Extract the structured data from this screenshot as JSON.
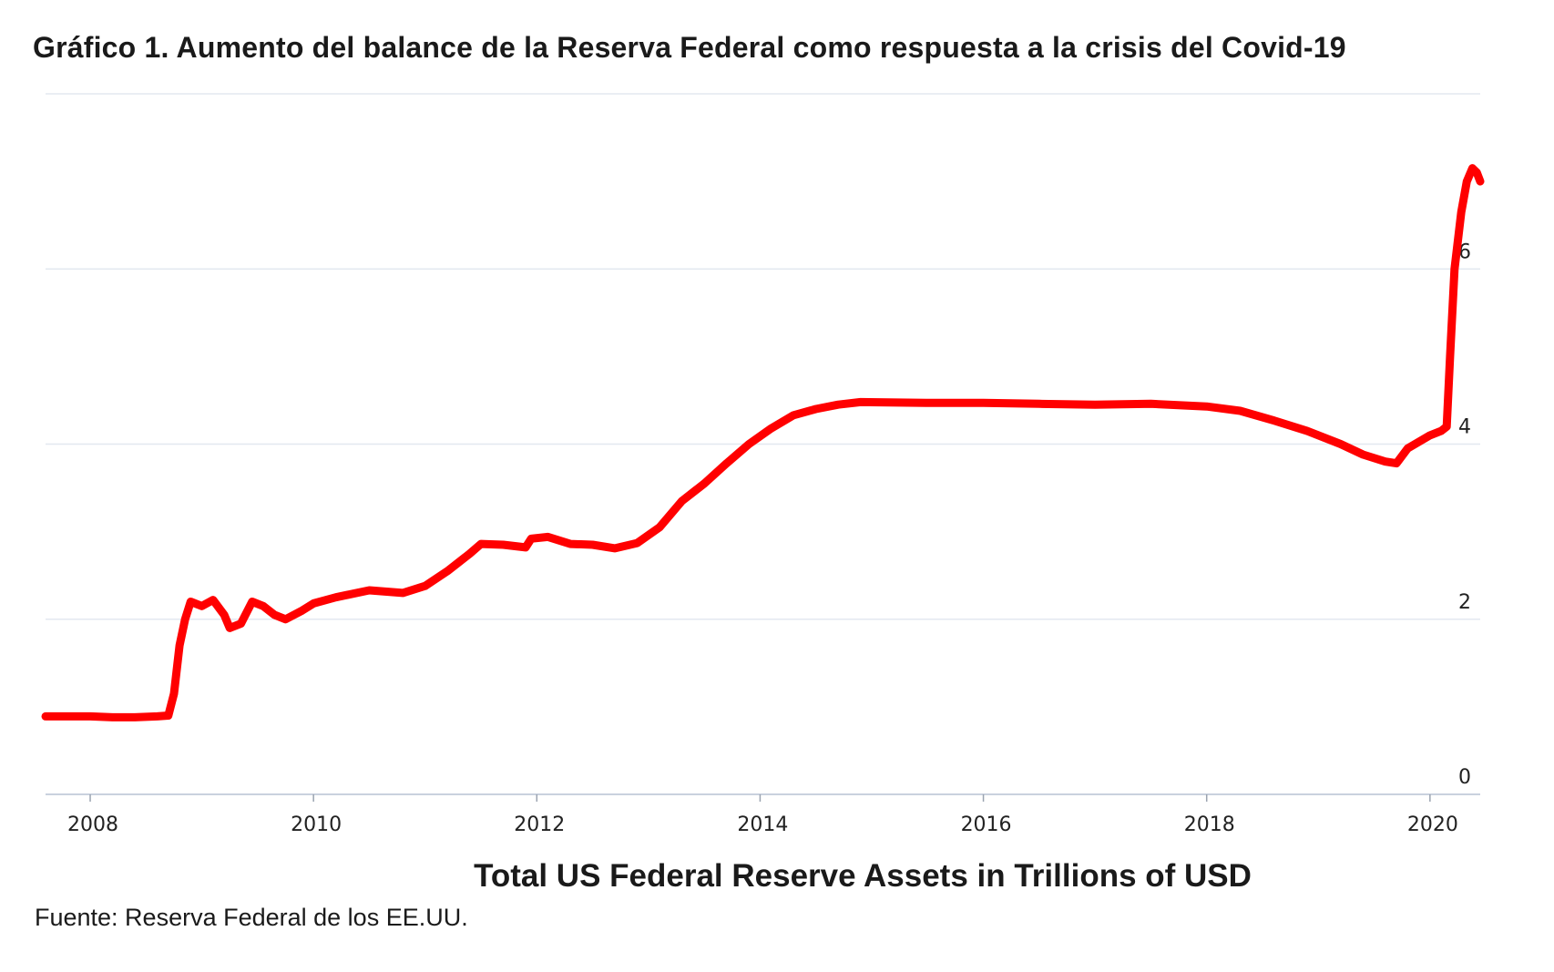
{
  "header": {
    "title": "Gráfico 1. Aumento del balance de la Reserva Federal como respuesta a la crisis del Covid-19"
  },
  "footer": {
    "source": "Fuente: Reserva Federal de los EE.UU."
  },
  "colors": {
    "line": "#ff0000",
    "grid": "#e3e8f0",
    "text": "#1a1a1a"
  },
  "chart_data": {
    "type": "line",
    "title": "",
    "xlabel": "Total US Federal Reserve Assets in Trillions of USD",
    "ylabel": "",
    "xlim": [
      2007.6,
      2020.45
    ],
    "ylim": [
      0,
      8
    ],
    "x_ticks": [
      "2008",
      "2010",
      "2012",
      "2014",
      "2016",
      "2018",
      "2020"
    ],
    "y_ticks": [
      "0",
      "2",
      "4",
      "6"
    ],
    "y_axis_side": "right",
    "grid": true,
    "series": [
      {
        "points": [
          [
            2007.6,
            0.89
          ],
          [
            2007.8,
            0.89
          ],
          [
            2008.0,
            0.89
          ],
          [
            2008.2,
            0.88
          ],
          [
            2008.4,
            0.88
          ],
          [
            2008.6,
            0.89
          ],
          [
            2008.7,
            0.9
          ],
          [
            2008.75,
            1.15
          ],
          [
            2008.8,
            1.7
          ],
          [
            2008.85,
            2.0
          ],
          [
            2008.9,
            2.2
          ],
          [
            2009.0,
            2.15
          ],
          [
            2009.1,
            2.22
          ],
          [
            2009.2,
            2.05
          ],
          [
            2009.25,
            1.9
          ],
          [
            2009.35,
            1.95
          ],
          [
            2009.45,
            2.2
          ],
          [
            2009.55,
            2.15
          ],
          [
            2009.65,
            2.05
          ],
          [
            2009.75,
            2.0
          ],
          [
            2009.9,
            2.1
          ],
          [
            2010.0,
            2.18
          ],
          [
            2010.2,
            2.25
          ],
          [
            2010.5,
            2.33
          ],
          [
            2010.8,
            2.3
          ],
          [
            2011.0,
            2.38
          ],
          [
            2011.2,
            2.55
          ],
          [
            2011.4,
            2.75
          ],
          [
            2011.5,
            2.86
          ],
          [
            2011.7,
            2.85
          ],
          [
            2011.9,
            2.82
          ],
          [
            2011.95,
            2.92
          ],
          [
            2012.1,
            2.94
          ],
          [
            2012.3,
            2.86
          ],
          [
            2012.5,
            2.85
          ],
          [
            2012.7,
            2.81
          ],
          [
            2012.9,
            2.87
          ],
          [
            2013.1,
            3.05
          ],
          [
            2013.3,
            3.35
          ],
          [
            2013.5,
            3.55
          ],
          [
            2013.7,
            3.78
          ],
          [
            2013.9,
            4.0
          ],
          [
            2014.1,
            4.18
          ],
          [
            2014.3,
            4.33
          ],
          [
            2014.5,
            4.4
          ],
          [
            2014.7,
            4.45
          ],
          [
            2014.9,
            4.48
          ],
          [
            2015.5,
            4.47
          ],
          [
            2016.0,
            4.47
          ],
          [
            2016.5,
            4.46
          ],
          [
            2017.0,
            4.45
          ],
          [
            2017.5,
            4.46
          ],
          [
            2018.0,
            4.43
          ],
          [
            2018.3,
            4.38
          ],
          [
            2018.6,
            4.27
          ],
          [
            2018.9,
            4.15
          ],
          [
            2019.2,
            4.0
          ],
          [
            2019.4,
            3.88
          ],
          [
            2019.6,
            3.8
          ],
          [
            2019.7,
            3.78
          ],
          [
            2019.8,
            3.95
          ],
          [
            2020.0,
            4.1
          ],
          [
            2020.1,
            4.15
          ],
          [
            2020.15,
            4.2
          ],
          [
            2020.18,
            5.0
          ],
          [
            2020.22,
            6.0
          ],
          [
            2020.28,
            6.65
          ],
          [
            2020.33,
            7.0
          ],
          [
            2020.38,
            7.15
          ],
          [
            2020.42,
            7.1
          ],
          [
            2020.45,
            7.0
          ]
        ]
      }
    ]
  }
}
